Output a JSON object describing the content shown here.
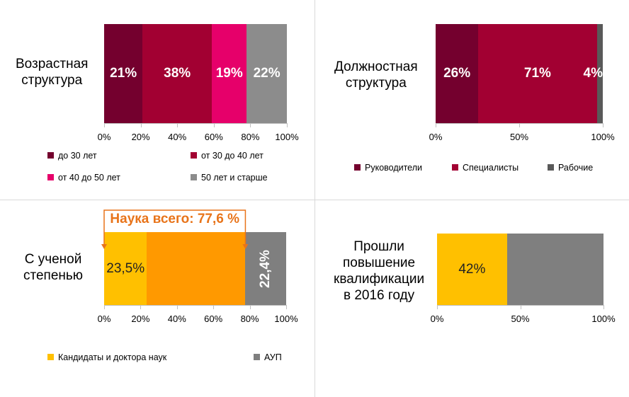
{
  "chart_data": [
    {
      "type": "bar",
      "orientation": "horizontal",
      "stacked": true,
      "title": [
        "Возрастная",
        "структура"
      ],
      "categories": [
        ""
      ],
      "series": [
        {
          "name": "до 30 лет",
          "value": 21,
          "label": "21%",
          "color": "#74002e"
        },
        {
          "name": "от 30 до 40 лет",
          "value": 38,
          "label": "38%",
          "color": "#a20032"
        },
        {
          "name": "от 40 до 50 лет",
          "value": 19,
          "label": "19%",
          "color": "#e6006a"
        },
        {
          "name": "50 лет и старше",
          "value": 22,
          "label": "22%",
          "color": "#8c8c8c"
        }
      ],
      "xlim": [
        0,
        100
      ],
      "xticks": [
        "0%",
        "20%",
        "40%",
        "60%",
        "80%",
        "100%"
      ],
      "grid": false,
      "legend": "bottom"
    },
    {
      "type": "bar",
      "orientation": "horizontal",
      "stacked": true,
      "title": [
        "Должностная",
        "структура"
      ],
      "categories": [
        ""
      ],
      "series": [
        {
          "name": "Руководители",
          "value": 25.5,
          "label": "26%",
          "color": "#74002e"
        },
        {
          "name": "Специалисты",
          "value": 71,
          "label": "71%",
          "color": "#a20032"
        },
        {
          "name": "Рабочие",
          "value": 3.5,
          "label": "4%",
          "color": "#595959"
        }
      ],
      "xlim": [
        0,
        100
      ],
      "xticks": [
        "0%",
        "50%",
        "100%"
      ],
      "grid": false,
      "legend": "bottom"
    },
    {
      "type": "bar",
      "orientation": "horizontal",
      "stacked": true,
      "title": [
        "С ученой",
        "степенью"
      ],
      "categories": [
        ""
      ],
      "series": [
        {
          "name": "Кандидаты и доктора наук",
          "value": 23.5,
          "label": "23,5%",
          "color": "#ffc000"
        },
        {
          "name": "",
          "value": 54.1,
          "label": "",
          "color": "#ff9900"
        },
        {
          "name": "АУП",
          "value": 22.4,
          "label": "22,4%",
          "color": "#7f7f7f"
        }
      ],
      "annotation": {
        "text": "Наука всего: 77,6 %",
        "from": 0,
        "to": 77.6,
        "color": "#e8741a"
      },
      "xlim": [
        0,
        100
      ],
      "xticks": [
        "0%",
        "20%",
        "40%",
        "60%",
        "80%",
        "100%"
      ],
      "grid": false,
      "legend": "bottom"
    },
    {
      "type": "bar",
      "orientation": "horizontal",
      "stacked": true,
      "title": [
        "Прошли",
        "повышение",
        "квалификации",
        "в 2016 году"
      ],
      "categories": [
        ""
      ],
      "series": [
        {
          "name": "",
          "value": 42,
          "label": "42%",
          "color": "#ffc000"
        },
        {
          "name": "",
          "value": 58,
          "label": "",
          "color": "#7f7f7f"
        }
      ],
      "xlim": [
        0,
        100
      ],
      "xticks": [
        "0%",
        "50%",
        "100%"
      ],
      "grid": false,
      "legend": "none"
    }
  ]
}
